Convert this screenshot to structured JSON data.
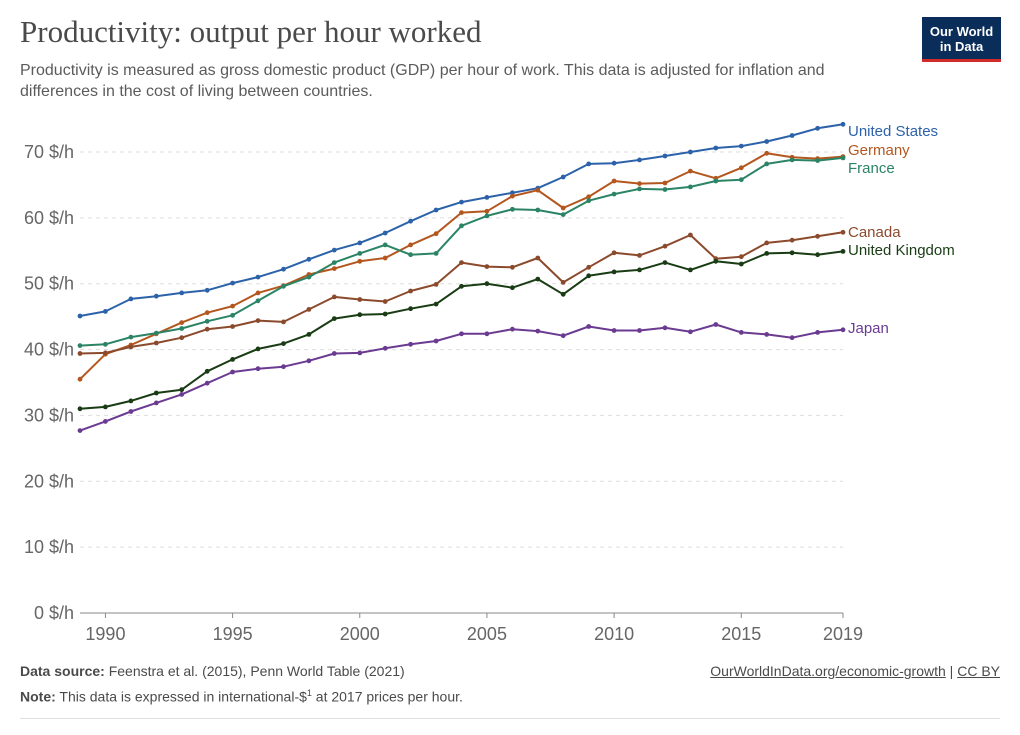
{
  "title": "Productivity: output per hour worked",
  "subtitle": "Productivity is measured as gross domestic product (GDP) per hour of work. This data is adjusted for inflation and differences in the cost of living between countries.",
  "logo": {
    "line1": "Our World",
    "line2": "in Data"
  },
  "footer": {
    "source_label": "Data source:",
    "source_text": "Feenstra et al. (2015), Penn World Table (2021)",
    "note_label": "Note:",
    "note_text_before": "This data is expressed in international-$",
    "note_sup": "1",
    "note_text_after": " at 2017 prices per hour.",
    "link": "OurWorldInData.org/economic-growth",
    "separator": " | ",
    "license": "CC BY"
  },
  "colors": {
    "United States": "#2c62a9",
    "Germany": "#b3571e",
    "France": "#2b8465",
    "Canada": "#8c4a2d",
    "United Kingdom": "#193c14",
    "Japan": "#6b3a91",
    "grid": "#dddddd",
    "axis": "#888888",
    "tick_text": "#666666"
  },
  "chart_data": {
    "type": "line",
    "x": [
      1989,
      1990,
      1991,
      1992,
      1993,
      1994,
      1995,
      1996,
      1997,
      1998,
      1999,
      2000,
      2001,
      2002,
      2003,
      2004,
      2005,
      2006,
      2007,
      2008,
      2009,
      2010,
      2011,
      2012,
      2013,
      2014,
      2015,
      2016,
      2017,
      2018,
      2019
    ],
    "xlim": [
      1989,
      2019
    ],
    "ylim": [
      0,
      70
    ],
    "xticks": [
      1990,
      1995,
      2000,
      2005,
      2010,
      2015,
      2019
    ],
    "yticks": [
      0,
      10,
      20,
      30,
      40,
      50,
      60,
      70
    ],
    "y_unit": " $/h",
    "grid": true,
    "legend": "right, labels at line ends",
    "series": [
      {
        "name": "United States",
        "values": [
          45.1,
          45.8,
          47.7,
          48.1,
          48.6,
          49.0,
          50.1,
          51.0,
          52.2,
          53.7,
          55.1,
          56.2,
          57.7,
          59.5,
          61.2,
          62.4,
          63.1,
          63.8,
          64.5,
          66.2,
          68.2,
          68.3,
          68.8,
          69.4,
          70.0,
          70.6,
          70.9,
          71.6,
          72.5,
          73.6,
          74.2
        ]
      },
      {
        "name": "Germany",
        "values": [
          35.5,
          39.3,
          40.7,
          42.4,
          44.1,
          45.6,
          46.6,
          48.6,
          49.7,
          51.4,
          52.3,
          53.4,
          53.9,
          55.9,
          57.6,
          60.8,
          61.0,
          63.3,
          64.2,
          61.5,
          63.2,
          65.6,
          65.2,
          65.3,
          67.1,
          66.0,
          67.6,
          69.8,
          69.2,
          69.0,
          69.3
        ]
      },
      {
        "name": "France",
        "values": [
          40.6,
          40.8,
          41.9,
          42.5,
          43.2,
          44.3,
          45.2,
          47.4,
          49.6,
          51.0,
          53.2,
          54.6,
          55.9,
          54.4,
          54.6,
          58.8,
          60.3,
          61.3,
          61.2,
          60.5,
          62.6,
          63.6,
          64.4,
          64.3,
          64.7,
          65.6,
          65.8,
          68.2,
          68.8,
          68.7,
          69.1
        ]
      },
      {
        "name": "Canada",
        "values": [
          39.4,
          39.5,
          40.4,
          41.0,
          41.8,
          43.1,
          43.5,
          44.4,
          44.2,
          46.1,
          48.0,
          47.6,
          47.3,
          48.9,
          49.9,
          53.2,
          52.6,
          52.5,
          53.9,
          50.2,
          52.5,
          54.7,
          54.3,
          55.7,
          57.4,
          53.8,
          54.1,
          56.2,
          56.6,
          57.2,
          57.8
        ]
      },
      {
        "name": "United Kingdom",
        "values": [
          31.0,
          31.3,
          32.2,
          33.4,
          33.9,
          36.7,
          38.5,
          40.1,
          40.9,
          42.3,
          44.7,
          45.3,
          45.4,
          46.2,
          46.9,
          49.6,
          50.0,
          49.4,
          50.7,
          48.4,
          51.2,
          51.8,
          52.1,
          53.2,
          52.1,
          53.4,
          53.0,
          54.6,
          54.7,
          54.4,
          54.9
        ]
      },
      {
        "name": "Japan",
        "values": [
          27.7,
          29.1,
          30.6,
          31.9,
          33.2,
          34.9,
          36.6,
          37.1,
          37.4,
          38.3,
          39.4,
          39.5,
          40.2,
          40.8,
          41.3,
          42.4,
          42.4,
          43.1,
          42.8,
          42.1,
          43.5,
          42.9,
          42.9,
          43.3,
          42.7,
          43.8,
          42.6,
          42.3,
          41.8,
          42.6,
          43.0
        ]
      }
    ]
  }
}
